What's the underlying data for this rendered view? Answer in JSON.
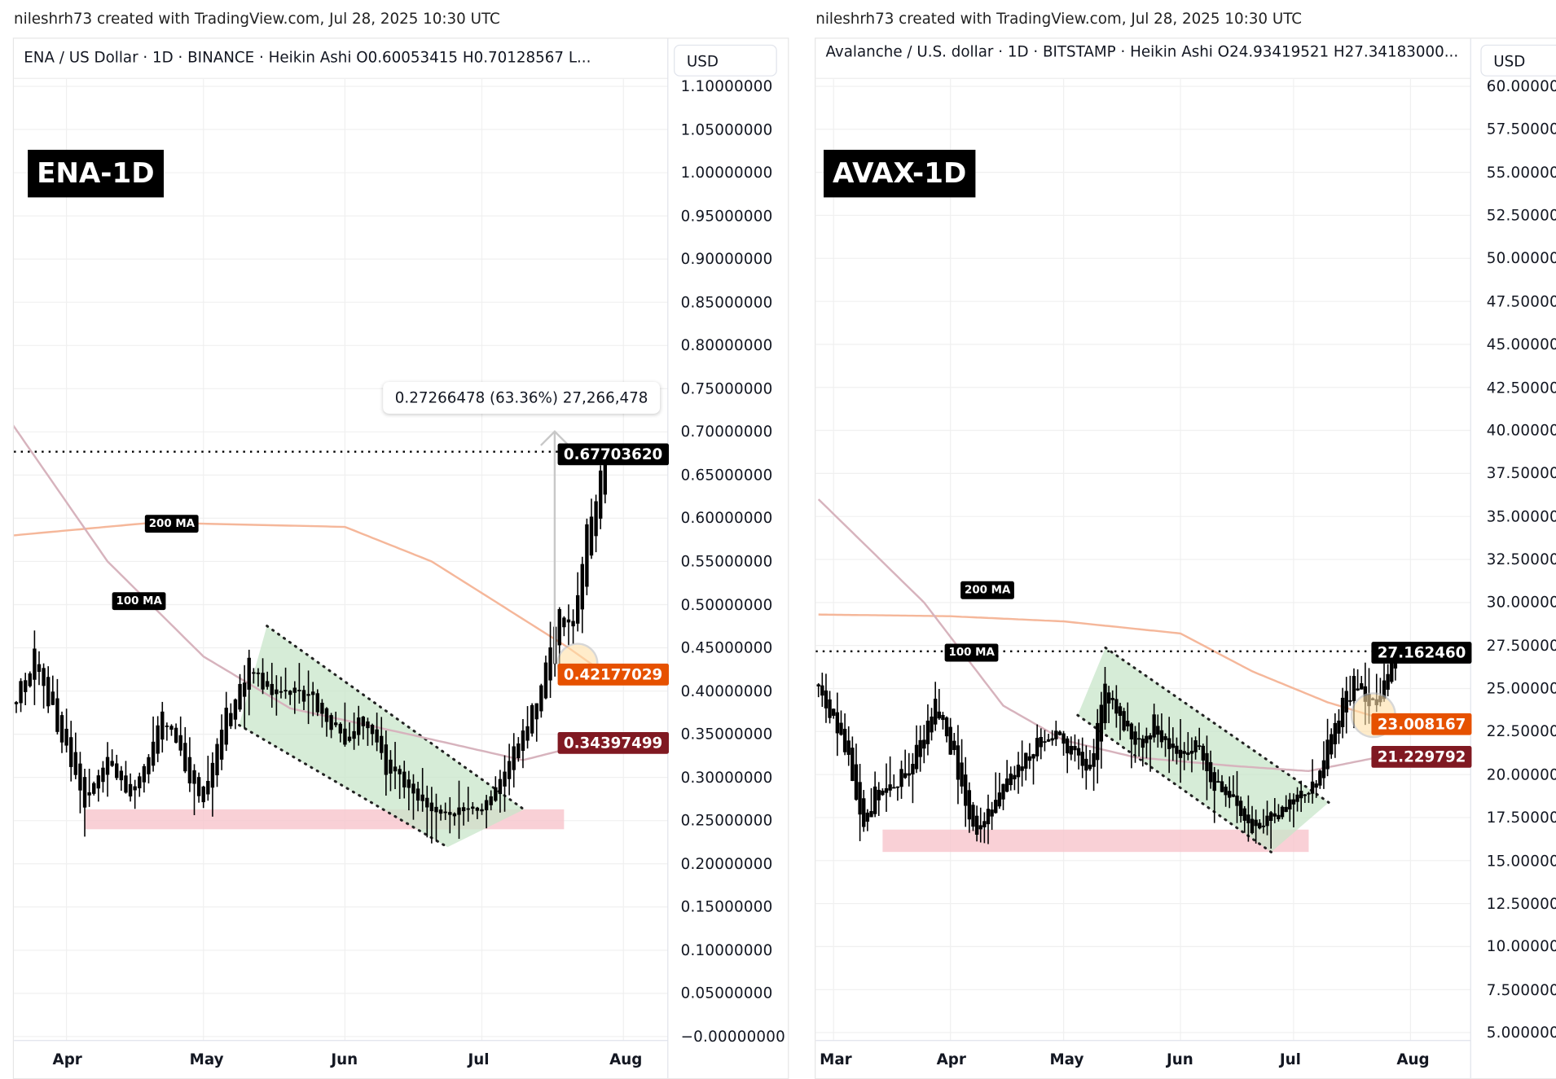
{
  "watermark": "nileshrh73 created with TradingView.com, Jul 28, 2025 10:30 UTC",
  "colors": {
    "ma200": "#f5b79a",
    "ma100": "#d7b3bd",
    "ma200_tag": "#e65100",
    "ma100_tag": "#801922",
    "channel": "#c8e6c9",
    "support_zone": "#f8c4cc",
    "highlight": "#ffe0a8"
  },
  "chart_data": [
    {
      "type": "candlestick",
      "header": "ENA / US Dollar · 1D · BINANCE · Heikin Ashi  O0.60053415  H0.70128567  L...",
      "badge": "ENA-1D",
      "currency": "USD",
      "ylim": [
        0,
        1.1
      ],
      "y_ticks": [
        "1.10000000",
        "1.05000000",
        "1.00000000",
        "0.95000000",
        "0.90000000",
        "0.85000000",
        "0.80000000",
        "0.75000000",
        "0.70000000",
        "0.65000000",
        "0.60000000",
        "0.55000000",
        "0.50000000",
        "0.45000000",
        "0.40000000",
        "0.35000000",
        "0.30000000",
        "0.25000000",
        "0.20000000",
        "0.15000000",
        "0.10000000",
        "0.05000000",
        "−0.00000000"
      ],
      "x_ticks": [
        "Apr",
        "May",
        "Jun",
        "Jul",
        "Aug"
      ],
      "grid": true,
      "last_price": "0.67703620",
      "ma200_value": "0.42177029",
      "ma100_value": "0.34397499",
      "ma200_label": "200 MA",
      "ma100_label": "100 MA",
      "measure_label": "0.27266478 (63.36%) 27,266,478",
      "support_zone": [
        0.24,
        0.263
      ],
      "closes": [
        [
          "2025-03-20",
          0.38
        ],
        [
          "2025-03-25",
          0.44
        ],
        [
          "2025-03-30",
          0.36
        ],
        [
          "2025-04-05",
          0.27
        ],
        [
          "2025-04-10",
          0.32
        ],
        [
          "2025-04-15",
          0.28
        ],
        [
          "2025-04-22",
          0.37
        ],
        [
          "2025-04-28",
          0.3
        ],
        [
          "2025-05-01",
          0.27
        ],
        [
          "2025-05-05",
          0.36
        ],
        [
          "2025-05-11",
          0.43
        ],
        [
          "2025-05-15",
          0.4
        ],
        [
          "2025-05-20",
          0.4
        ],
        [
          "2025-05-25",
          0.39
        ],
        [
          "2025-06-01",
          0.34
        ],
        [
          "2025-06-05",
          0.37
        ],
        [
          "2025-06-10",
          0.31
        ],
        [
          "2025-06-15",
          0.29
        ],
        [
          "2025-06-20",
          0.26
        ],
        [
          "2025-06-25",
          0.26
        ],
        [
          "2025-07-01",
          0.26
        ],
        [
          "2025-07-05",
          0.3
        ],
        [
          "2025-07-10",
          0.35
        ],
        [
          "2025-07-14",
          0.4
        ],
        [
          "2025-07-18",
          0.5
        ],
        [
          "2025-07-21",
          0.48
        ],
        [
          "2025-07-24",
          0.58
        ],
        [
          "2025-07-27",
          0.66
        ],
        [
          "2025-07-28",
          0.677
        ]
      ],
      "ma200": [
        [
          "2025-03-20",
          0.58
        ],
        [
          "2025-04-20",
          0.595
        ],
        [
          "2025-06-01",
          0.59
        ],
        [
          "2025-06-20",
          0.55
        ],
        [
          "2025-07-05",
          0.5
        ],
        [
          "2025-07-20",
          0.45
        ],
        [
          "2025-07-28",
          0.42
        ]
      ],
      "ma100": [
        [
          "2025-03-20",
          0.71
        ],
        [
          "2025-04-10",
          0.55
        ],
        [
          "2025-05-01",
          0.44
        ],
        [
          "2025-05-20",
          0.38
        ],
        [
          "2025-06-15",
          0.35
        ],
        [
          "2025-07-10",
          0.32
        ],
        [
          "2025-07-28",
          0.344
        ]
      ]
    },
    {
      "type": "candlestick",
      "header": "Avalanche / U.S. dollar · 1D · BITSTAMP · Heikin Ashi  O24.93419521  H27.34183000...",
      "badge": "AVAX-1D",
      "currency": "USD",
      "ylim": [
        5,
        60
      ],
      "y_ticks": [
        "60.000000",
        "57.500000",
        "55.000000",
        "52.500000",
        "50.000000",
        "47.500000",
        "45.000000",
        "42.500000",
        "40.000000",
        "37.500000",
        "35.000000",
        "32.500000",
        "30.000000",
        "27.500000",
        "25.000000",
        "22.500000",
        "20.000000",
        "17.500000",
        "15.000000",
        "12.500000",
        "10.000000",
        "7.5000000",
        "5.0000000"
      ],
      "x_ticks": [
        "Mar",
        "Apr",
        "May",
        "Jun",
        "Jul",
        "Aug"
      ],
      "grid": true,
      "last_price": "27.162460",
      "ma200_value": "23.008167",
      "ma100_value": "21.229792",
      "ma200_label": "200 MA",
      "ma100_label": "100 MA",
      "support_zone": [
        15.5,
        16.8
      ],
      "closes": [
        [
          "2025-02-25",
          25
        ],
        [
          "2025-03-01",
          23
        ],
        [
          "2025-03-05",
          21
        ],
        [
          "2025-03-09",
          17
        ],
        [
          "2025-03-12",
          19
        ],
        [
          "2025-03-20",
          20
        ],
        [
          "2025-03-28",
          24
        ],
        [
          "2025-04-02",
          21
        ],
        [
          "2025-04-06",
          17
        ],
        [
          "2025-04-09",
          16.5
        ],
        [
          "2025-04-13",
          19
        ],
        [
          "2025-04-18",
          20
        ],
        [
          "2025-04-25",
          22
        ],
        [
          "2025-05-01",
          22
        ],
        [
          "2025-05-05",
          21
        ],
        [
          "2025-05-08",
          20
        ],
        [
          "2025-05-12",
          25
        ],
        [
          "2025-05-15",
          24
        ],
        [
          "2025-05-20",
          21.5
        ],
        [
          "2025-05-25",
          23
        ],
        [
          "2025-06-01",
          21
        ],
        [
          "2025-06-05",
          22
        ],
        [
          "2025-06-10",
          19.5
        ],
        [
          "2025-06-15",
          18.5
        ],
        [
          "2025-06-20",
          17
        ],
        [
          "2025-06-25",
          17.5
        ],
        [
          "2025-07-01",
          18.5
        ],
        [
          "2025-07-05",
          18.7
        ],
        [
          "2025-07-10",
          21.5
        ],
        [
          "2025-07-14",
          24
        ],
        [
          "2025-07-18",
          25.5
        ],
        [
          "2025-07-22",
          24
        ],
        [
          "2025-07-25",
          25
        ],
        [
          "2025-07-28",
          27.16
        ]
      ],
      "ma200": [
        [
          "2025-02-25",
          29.3
        ],
        [
          "2025-04-01",
          29.2
        ],
        [
          "2025-05-01",
          28.9
        ],
        [
          "2025-06-01",
          28.2
        ],
        [
          "2025-06-20",
          26
        ],
        [
          "2025-07-10",
          24.2
        ],
        [
          "2025-07-28",
          23.0
        ]
      ],
      "ma100": [
        [
          "2025-02-25",
          36
        ],
        [
          "2025-03-25",
          30
        ],
        [
          "2025-04-15",
          24
        ],
        [
          "2025-05-01",
          22
        ],
        [
          "2025-05-20",
          21
        ],
        [
          "2025-06-15",
          20.5
        ],
        [
          "2025-07-05",
          20.2
        ],
        [
          "2025-07-28",
          21.2
        ]
      ]
    }
  ]
}
